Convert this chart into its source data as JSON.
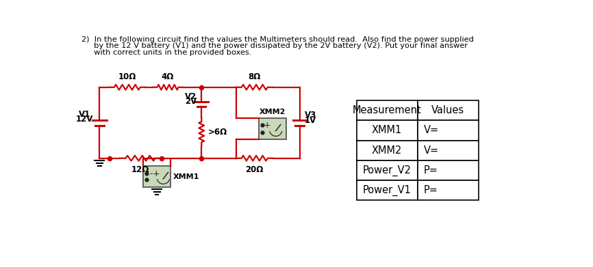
{
  "title_line1": "2)  In the following circuit find the values the Multimeters should read.  Also find the power supplied",
  "title_line2": "     by the 12 V battery (V1) and the power dissipated by the 2V battery (V2). Put your final answer",
  "title_line3": "     with correct units in the provided boxes.",
  "bg_color": "#ffffff",
  "circuit_color": "#cc0000",
  "text_color": "#000000",
  "table_headers": [
    "Measurement",
    "Values"
  ],
  "table_rows": [
    [
      "XMM1",
      "V="
    ],
    [
      "XMM2",
      "V="
    ],
    [
      "Power_V2",
      "P="
    ],
    [
      "Power_V1",
      "P="
    ]
  ]
}
